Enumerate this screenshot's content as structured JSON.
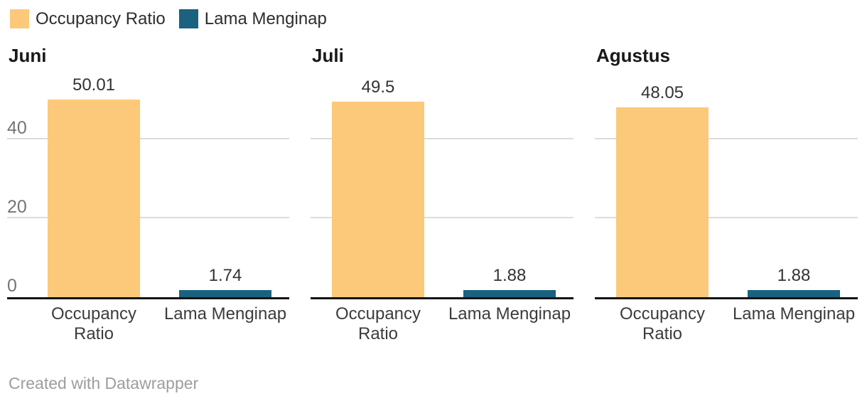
{
  "legend": {
    "items": [
      {
        "label": "Occupancy Ratio",
        "color": "#fcc97a"
      },
      {
        "label": "Lama Menginap",
        "color": "#1a627f"
      }
    ]
  },
  "footer": {
    "attribution": "Created with Datawrapper"
  },
  "chart_data": {
    "type": "bar",
    "layout": "small-multiples",
    "grid": true,
    "categories": [
      "Occupancy Ratio",
      "Lama Menginap"
    ],
    "colors": {
      "occupancy_ratio": "#fcc97a",
      "lama_menginap": "#1a627f",
      "gridline": "#dcdcdc",
      "axis_line": "#141414",
      "tick_text": "#757575"
    },
    "y_axis": {
      "ticks": [
        0,
        20,
        40
      ],
      "ylim": [
        0,
        52.25
      ],
      "tick_labels_visible_on": "first panel only"
    },
    "panels": [
      {
        "title": "Juni",
        "values": [
          50.01,
          1.74
        ],
        "labels": [
          "50.01",
          "1.74"
        ]
      },
      {
        "title": "Juli",
        "values": [
          49.5,
          1.88
        ],
        "labels": [
          "49.5",
          "1.88"
        ]
      },
      {
        "title": "Agustus",
        "values": [
          48.05,
          1.88
        ],
        "labels": [
          "48.05",
          "1.88"
        ]
      }
    ]
  }
}
